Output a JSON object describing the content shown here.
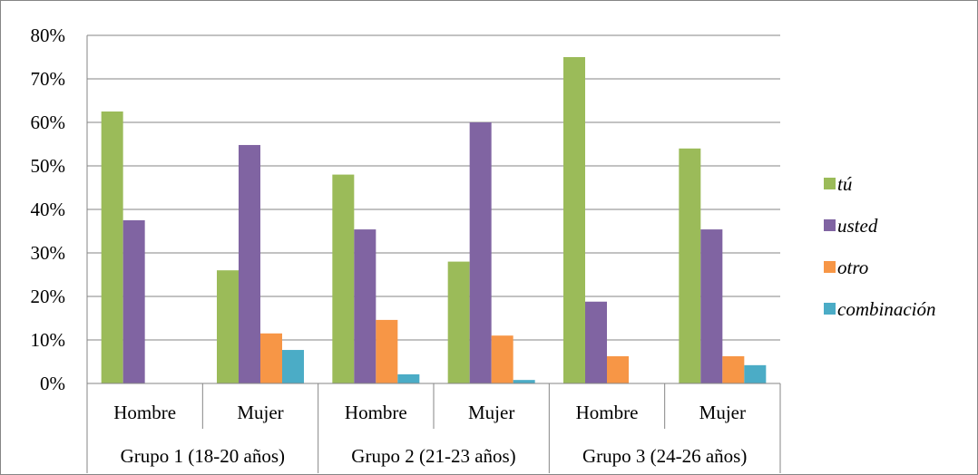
{
  "chart_data": {
    "type": "bar",
    "groups": [
      "Grupo 1 (18-20 años)",
      "Grupo 2 (21-23 años)",
      "Grupo 3 (24-26 años)"
    ],
    "categories": [
      "Hombre",
      "Mujer",
      "Hombre",
      "Mujer",
      "Hombre",
      "Mujer"
    ],
    "series": [
      {
        "name": "tú",
        "color": "#9BBB59",
        "values": [
          62.5,
          26.0,
          48.0,
          28.0,
          75.0,
          54.0
        ]
      },
      {
        "name": "usted",
        "color": "#8064A2",
        "values": [
          37.5,
          54.8,
          35.4,
          60.0,
          18.8,
          35.4
        ]
      },
      {
        "name": "otro",
        "color": "#F79646",
        "values": [
          0.0,
          11.5,
          14.6,
          11.0,
          6.25,
          6.25
        ]
      },
      {
        "name": "combinación",
        "color": "#4BACC6",
        "values": [
          0.0,
          7.7,
          2.1,
          0.8,
          0.0,
          4.2
        ]
      }
    ],
    "ylim": [
      0,
      80
    ],
    "yticks": [
      "0%",
      "10%",
      "20%",
      "30%",
      "40%",
      "50%",
      "60%",
      "70%",
      "80%"
    ],
    "grid": true,
    "legend_position": "right"
  }
}
